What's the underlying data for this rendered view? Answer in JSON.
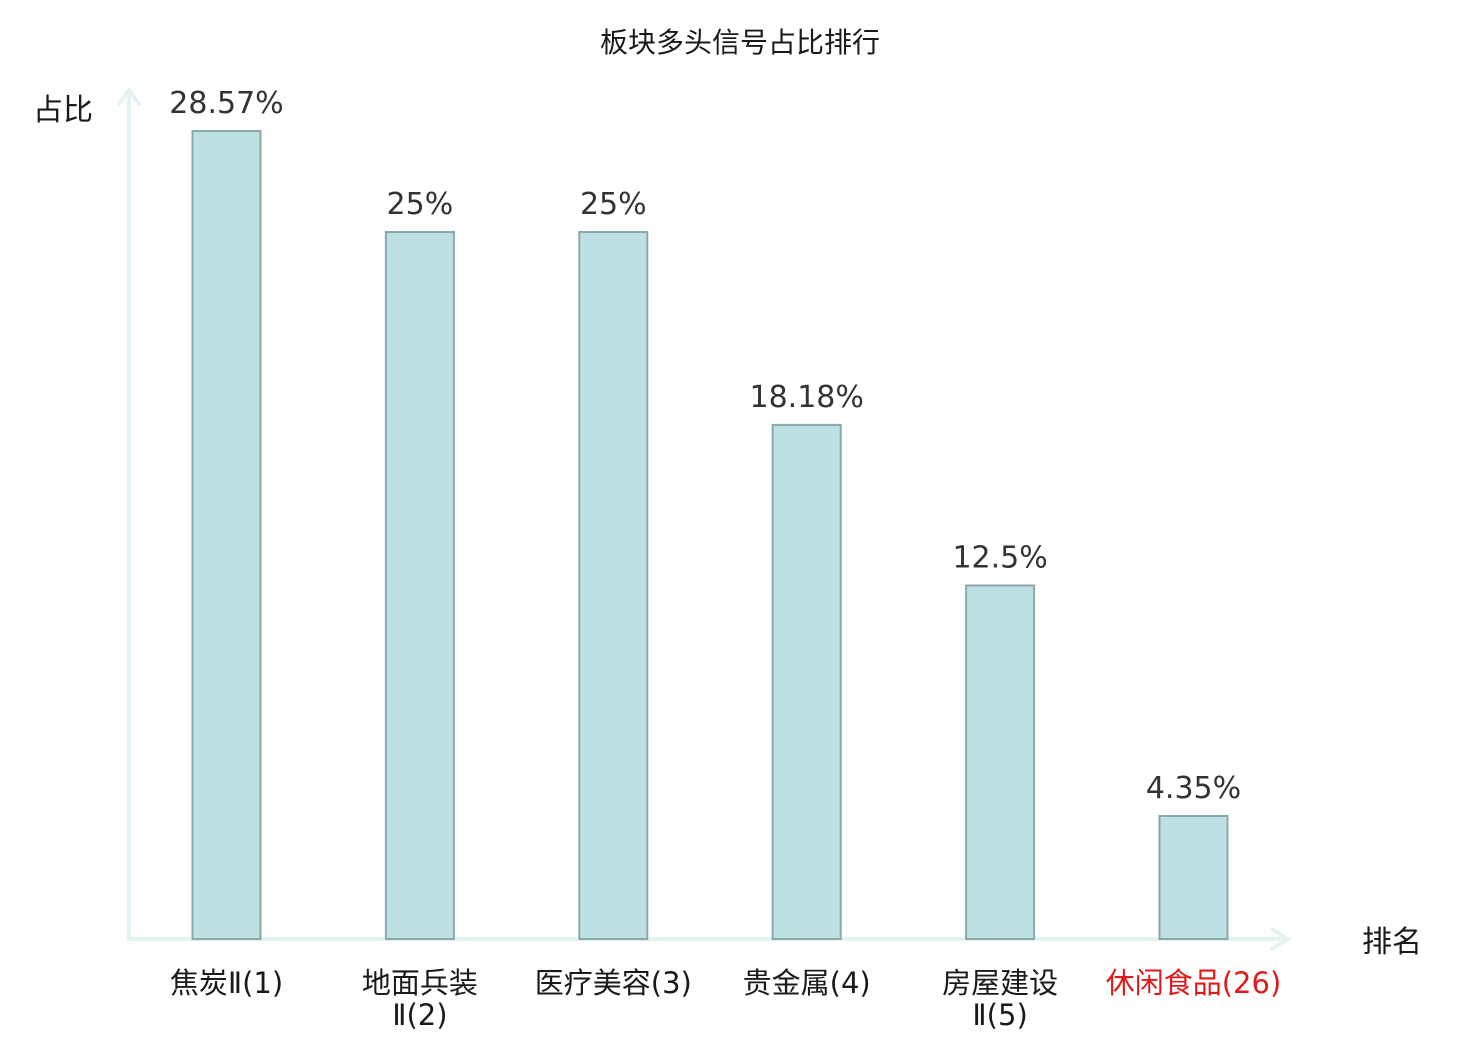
{
  "chart_data": {
    "type": "bar",
    "title": "板块多头信号占比排行",
    "xlabel": "排名",
    "ylabel": "占比",
    "categories": [
      {
        "lines": [
          "焦炭Ⅱ(1)"
        ],
        "highlight": false
      },
      {
        "lines": [
          "地面兵装",
          "Ⅱ(2)"
        ],
        "highlight": false
      },
      {
        "lines": [
          "医疗美容(3)"
        ],
        "highlight": false
      },
      {
        "lines": [
          "贵金属(4)"
        ],
        "highlight": false
      },
      {
        "lines": [
          "房屋建设",
          "Ⅱ(5)"
        ],
        "highlight": false
      },
      {
        "lines": [
          "休闲食品(26)"
        ],
        "highlight": true
      }
    ],
    "values": [
      28.57,
      25,
      25,
      18.18,
      12.5,
      4.35
    ],
    "value_labels": [
      "28.57%",
      "25%",
      "25%",
      "18.18%",
      "12.5%",
      "4.35%"
    ],
    "ylim": [
      0,
      30
    ],
    "grid": false,
    "colors": {
      "bar_fill": "#bde0e3",
      "bar_stroke": "#8aa9ad",
      "axis": "#e3f3f1",
      "highlight_label": "#e01a1a"
    }
  }
}
